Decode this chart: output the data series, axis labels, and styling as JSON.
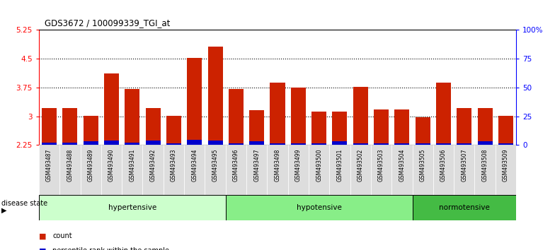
{
  "title": "GDS3672 / 100099339_TGI_at",
  "samples": [
    "GSM493487",
    "GSM493488",
    "GSM493489",
    "GSM493490",
    "GSM493491",
    "GSM493492",
    "GSM493493",
    "GSM493494",
    "GSM493495",
    "GSM493496",
    "GSM493497",
    "GSM493498",
    "GSM493499",
    "GSM493500",
    "GSM493501",
    "GSM493502",
    "GSM493503",
    "GSM493504",
    "GSM493505",
    "GSM493506",
    "GSM493507",
    "GSM493508",
    "GSM493509"
  ],
  "count_values": [
    3.22,
    3.22,
    3.02,
    4.12,
    3.72,
    3.22,
    3.02,
    4.52,
    4.82,
    3.72,
    3.15,
    3.87,
    3.75,
    3.12,
    3.12,
    3.77,
    3.17,
    3.17,
    2.97,
    3.87,
    3.22,
    3.22,
    3.02
  ],
  "percentile_values_yscale": [
    0.07,
    0.07,
    0.09,
    0.12,
    0.07,
    0.12,
    0.05,
    0.14,
    0.12,
    0.05,
    0.1,
    0.05,
    0.05,
    0.05,
    0.1,
    0.05,
    0.05,
    0.05,
    0.05,
    0.05,
    0.05,
    0.1,
    0.05
  ],
  "groups": [
    {
      "label": "hypertensive",
      "start": 0,
      "end": 9,
      "color": "#ccffcc"
    },
    {
      "label": "hypotensive",
      "start": 9,
      "end": 18,
      "color": "#88ee88"
    },
    {
      "label": "normotensive",
      "start": 18,
      "end": 23,
      "color": "#44bb44"
    }
  ],
  "ylim_left": [
    2.25,
    5.25
  ],
  "ylim_right": [
    0,
    100
  ],
  "yticks_left": [
    2.25,
    3.0,
    3.75,
    4.5,
    5.25
  ],
  "yticks_right": [
    0,
    25,
    50,
    75,
    100
  ],
  "ytick_labels_left": [
    "2.25",
    "3",
    "3.75",
    "4.5",
    "5.25"
  ],
  "ytick_labels_right": [
    "0",
    "25",
    "50",
    "75",
    "100%"
  ],
  "bar_color_red": "#cc2200",
  "bar_color_blue": "#0000cc",
  "bar_width": 0.72,
  "background_color": "#ffffff",
  "disease_state_label": "disease state"
}
